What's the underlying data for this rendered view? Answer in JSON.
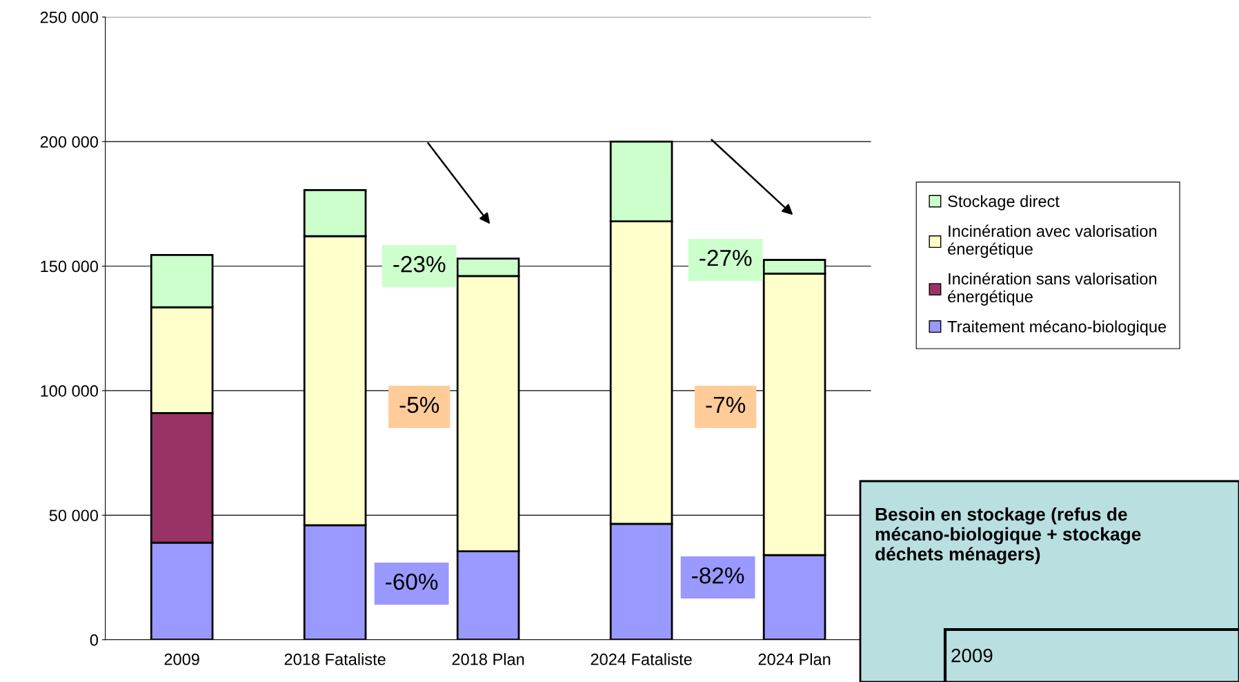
{
  "chart_data": {
    "type": "bar",
    "stacked": true,
    "categories": [
      "2009",
      "2018 Fataliste",
      "2018 Plan",
      "2024 Fataliste",
      "2024 Plan"
    ],
    "series": [
      {
        "name": "Traitement mécano-biologique",
        "color": "#9999ff",
        "values": [
          39000,
          46000,
          35500,
          46500,
          34000
        ]
      },
      {
        "name": "Incinération sans valorisation énergétique",
        "color": "#993366",
        "values": [
          52000,
          0,
          0,
          0,
          0
        ]
      },
      {
        "name": "Incinération avec valorisation énergétique",
        "color": "#ffffcc",
        "values": [
          42500,
          116000,
          110500,
          121500,
          113000
        ]
      },
      {
        "name": "Stockage direct",
        "color": "#ccffcc",
        "values": [
          21000,
          18500,
          7000,
          32000,
          5500
        ]
      }
    ],
    "ylim": [
      0,
      250000
    ],
    "yticks": [
      {
        "value": 0,
        "label": "0"
      },
      {
        "value": 50000,
        "label": "50 000"
      },
      {
        "value": 100000,
        "label": "100 000"
      },
      {
        "value": 150000,
        "label": "150 000"
      },
      {
        "value": 200000,
        "label": "200 000"
      },
      {
        "value": 250000,
        "label": "250 000"
      }
    ],
    "grid": "y",
    "legend": "right",
    "annotations": [
      "-23%",
      "-5%",
      "-60%",
      "-27%",
      "-7%",
      "-82%",
      "Besoin en stockage (refus de\nmécano-biologique + stockage\ndéchets ménagers)",
      "2009"
    ]
  }
}
